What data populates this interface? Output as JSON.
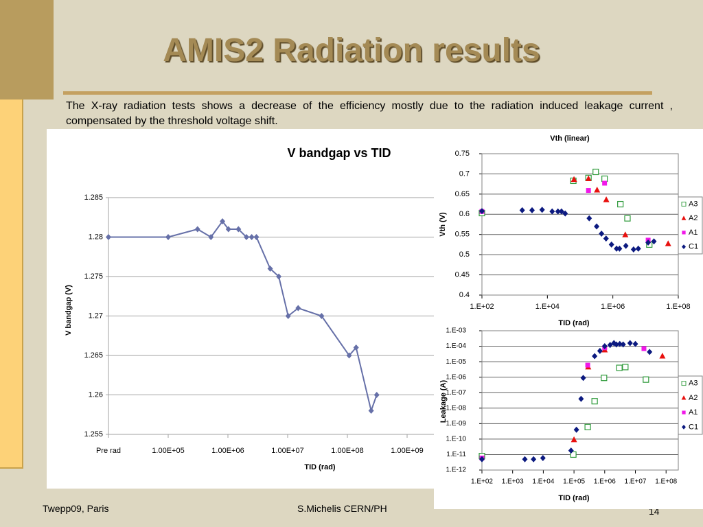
{
  "slide": {
    "title": "AMIS2 Radiation results",
    "text": "The X-ray radiation tests shows a decrease of the efficiency mostly due to the radiation induced leakage current , compensated by the threshold voltage shift.",
    "footer_left": "Twepp09, Paris",
    "footer_center": "S.Michelis CERN/PH",
    "page_number": "14"
  },
  "chart_data": [
    {
      "type": "line",
      "title": "V bandgap vs TID",
      "xlabel": "TID (rad)",
      "ylabel": "V bandgap  (V)",
      "xlog": true,
      "xlim": [
        10000,
        10000000000
      ],
      "ylim": [
        1.255,
        1.285
      ],
      "grid": true,
      "xticks": [
        {
          "value": 10000,
          "label": "Pre rad"
        },
        {
          "value": 100000,
          "label": "1.00E+05"
        },
        {
          "value": 1000000,
          "label": "1.00E+06"
        },
        {
          "value": 10000000,
          "label": "1.00E+07"
        },
        {
          "value": 100000000,
          "label": "1.00E+08"
        },
        {
          "value": 1000000000,
          "label": "1.00E+09"
        }
      ],
      "yticks": [
        1.255,
        1.26,
        1.265,
        1.27,
        1.275,
        1.28,
        1.285
      ],
      "color": "#6670a8",
      "marker": "diamond",
      "x": [
        10000,
        100000,
        310000,
        520000,
        810000,
        1020000,
        1500000,
        2040000,
        2500000,
        3000000,
        5100000,
        7100000,
        10200000,
        15000000,
        37000000,
        107000000,
        140000000,
        250000000,
        310000000
      ],
      "values": [
        1.28,
        1.28,
        1.281,
        1.28,
        1.282,
        1.281,
        1.281,
        1.28,
        1.28,
        1.28,
        1.276,
        1.275,
        1.27,
        1.271,
        1.27,
        1.265,
        1.266,
        1.258,
        1.26
      ]
    },
    {
      "type": "scatter",
      "title": "Vth (linear)",
      "xlabel": "TID (rad)",
      "ylabel": "Vth (V)",
      "xlog": true,
      "xlim": [
        100,
        100000000
      ],
      "ylim": [
        0.4,
        0.75
      ],
      "grid": true,
      "legend": "right",
      "xticks": [
        {
          "value": 100,
          "label": "1.E+02"
        },
        {
          "value": 10000,
          "label": "1.E+04"
        },
        {
          "value": 1000000,
          "label": "1.E+06"
        },
        {
          "value": 100000000,
          "label": "1.E+08"
        }
      ],
      "yticks": [
        0.4,
        0.45,
        0.5,
        0.55,
        0.6,
        0.65,
        0.7,
        0.75
      ],
      "series": [
        {
          "name": "A3",
          "color": "#2e9a3a",
          "marker": "square-open",
          "x": [
            100,
            62000,
            180000,
            300000,
            560000,
            1700000,
            2800000,
            13000000
          ],
          "values": [
            0.603,
            0.683,
            0.69,
            0.705,
            0.688,
            0.625,
            0.59,
            0.525
          ]
        },
        {
          "name": "A2",
          "color": "#e8100e",
          "marker": "triangle",
          "x": [
            65000,
            180000,
            330000,
            630000,
            2400000,
            49000000
          ],
          "values": [
            0.686,
            0.688,
            0.66,
            0.636,
            0.549,
            0.527
          ]
        },
        {
          "name": "A1",
          "color": "#f018e8",
          "marker": "square",
          "x": [
            100,
            180000,
            560000,
            12000000
          ],
          "values": [
            0.607,
            0.659,
            0.677,
            0.536
          ]
        },
        {
          "name": "C1",
          "color": "#0c1a80",
          "marker": "diamond",
          "x": [
            100,
            1700,
            3400,
            6900,
            14000,
            21000,
            27000,
            35000,
            190000,
            320000,
            450000,
            620000,
            910000,
            1300000,
            1600000,
            2500000,
            4300000,
            6000000,
            12000000,
            18000000
          ],
          "values": [
            0.608,
            0.61,
            0.61,
            0.611,
            0.607,
            0.607,
            0.607,
            0.602,
            0.59,
            0.57,
            0.552,
            0.54,
            0.525,
            0.515,
            0.515,
            0.522,
            0.513,
            0.515,
            0.53,
            0.533
          ]
        }
      ]
    },
    {
      "type": "scatter",
      "xlabel": "TID (rad)",
      "ylabel": "Leakage (A)",
      "xlog": true,
      "ylog": true,
      "xlim": [
        100,
        250000000
      ],
      "ylim": [
        1e-12,
        0.001
      ],
      "grid": true,
      "legend": "right",
      "xticks": [
        {
          "value": 100,
          "label": "1.E+02"
        },
        {
          "value": 1000,
          "label": "1.E+03"
        },
        {
          "value": 10000,
          "label": "1.E+04"
        },
        {
          "value": 100000,
          "label": "1.E+05"
        },
        {
          "value": 1000000,
          "label": "1.E+06"
        },
        {
          "value": 10000000,
          "label": "1.E+07"
        },
        {
          "value": 100000000,
          "label": "1.E+08"
        }
      ],
      "yticks": [
        {
          "value": 0.001,
          "label": "1.E-03"
        },
        {
          "value": 0.0001,
          "label": "1.E-04"
        },
        {
          "value": 1e-05,
          "label": "1.E-05"
        },
        {
          "value": 1e-06,
          "label": "1.E-06"
        },
        {
          "value": 1e-07,
          "label": "1.E-07"
        },
        {
          "value": 1e-08,
          "label": "1.E-08"
        },
        {
          "value": 1e-09,
          "label": "1.E-09"
        },
        {
          "value": 1e-10,
          "label": "1.E-10"
        },
        {
          "value": 1e-11,
          "label": "1.E-11"
        },
        {
          "value": 1e-12,
          "label": "1.E-12"
        }
      ],
      "series": [
        {
          "name": "A3",
          "color": "#2e9a3a",
          "marker": "square-open",
          "x": [
            100,
            95000,
            280000,
            470000,
            950000,
            3000000,
            4700000,
            22000000
          ],
          "values": [
            8e-12,
            1e-11,
            6e-10,
            2.8e-08,
            9e-07,
            4e-06,
            4.5e-06,
            7e-07
          ]
        },
        {
          "name": "A2",
          "color": "#e8100e",
          "marker": "triangle",
          "x": [
            100000,
            290000,
            1000000,
            76000000
          ],
          "values": [
            9e-11,
            4.5e-06,
            5.7e-05,
            2.3e-05
          ]
        },
        {
          "name": "A1",
          "color": "#f018e8",
          "marker": "square",
          "x": [
            100,
            280000,
            1000000,
            19000000
          ],
          "values": [
            6e-12,
            6e-06,
            8e-05,
            7e-05
          ]
        },
        {
          "name": "C1",
          "color": "#0c1a80",
          "marker": "diamond",
          "x": [
            100,
            2500,
            4800,
            9700,
            80000,
            120000,
            170000,
            200000,
            470000,
            700000,
            1000000,
            1500000,
            2000000,
            2400000,
            3100000,
            4000000,
            6700000,
            10000000,
            29000000
          ],
          "values": [
            5e-12,
            5e-12,
            5e-12,
            6e-12,
            1.8e-11,
            4e-10,
            4e-08,
            9e-07,
            2.3e-05,
            5e-05,
            0.0001,
            0.00012,
            0.00016,
            0.00013,
            0.00014,
            0.00013,
            0.00016,
            0.00014,
            4.3e-05
          ]
        }
      ]
    }
  ]
}
